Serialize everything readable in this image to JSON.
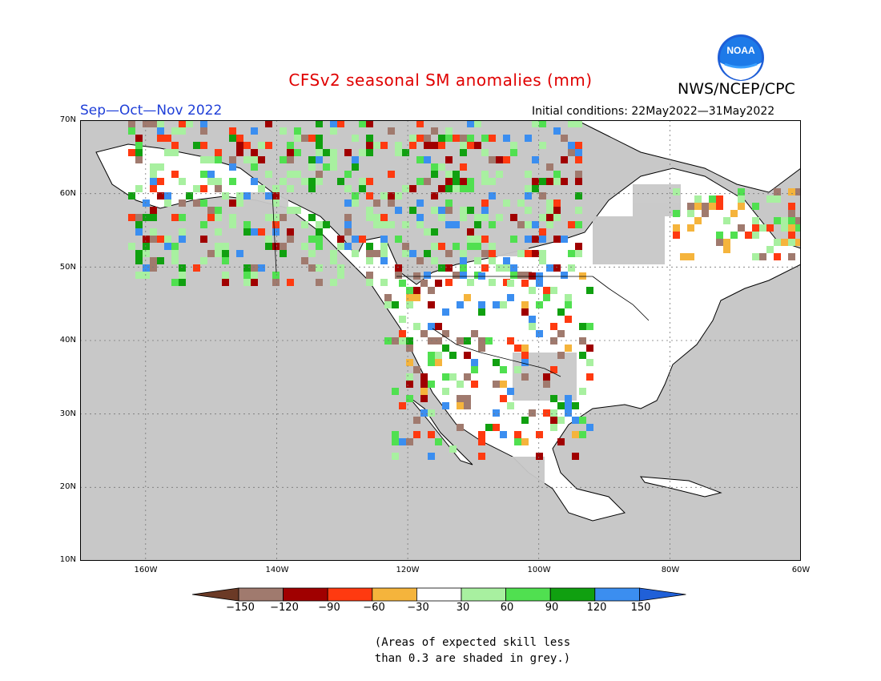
{
  "title": "CFSv2 seasonal SM anomalies (mm)",
  "organization": "NWS/NCEP/CPC",
  "logo_text": "NOAA",
  "season": "Sep—Oct—Nov 2022",
  "initial_conditions": "Initial conditions: 22May2022—31May2022",
  "latitude_labels": [
    "70N",
    "60N",
    "50N",
    "40N",
    "30N",
    "20N",
    "10N"
  ],
  "longitude_labels": [
    "160W",
    "140W",
    "120W",
    "100W",
    "80W",
    "60W"
  ],
  "colorbar": {
    "labels": [
      "−150",
      "−120",
      "−90",
      "−60",
      "−30",
      "30",
      "60",
      "90",
      "120",
      "150"
    ],
    "colors": [
      "#6b3a26",
      "#a07a6e",
      "#a00000",
      "#ff3a10",
      "#f5b43c",
      "#ffffff",
      "#a8f0a0",
      "#50e050",
      "#10a010",
      "#3b8ef0",
      "#2060d8"
    ]
  },
  "note": [
    "(Areas of expected skill less",
    "than 0.3 are shaded in grey.)"
  ],
  "map_colors": {
    "ocean": "#c8c8c8",
    "land": "#ffffff",
    "low_skill": "#c8c8c8"
  }
}
